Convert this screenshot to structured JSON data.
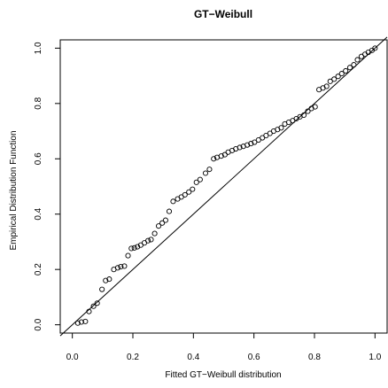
{
  "chart_data": {
    "type": "scatter",
    "title": "GT−Weibull",
    "xlabel": "Fitted GT−Weibull distribution",
    "ylabel": "Empirical Distribution Function",
    "xlim": [
      -0.04,
      1.04
    ],
    "ylim": [
      -0.03,
      1.03
    ],
    "xticks": [
      0.0,
      0.2,
      0.4,
      0.6,
      0.8,
      1.0
    ],
    "xtick_labels": [
      "0.0",
      "0.2",
      "0.4",
      "0.6",
      "0.8",
      "1.0"
    ],
    "yticks": [
      0.0,
      0.2,
      0.4,
      0.6,
      0.8,
      1.0
    ],
    "ytick_labels": [
      "0.0",
      "0.2",
      "0.4",
      "0.6",
      "0.8",
      "1.0"
    ],
    "grid": false,
    "reference_line": {
      "x": [
        -0.04,
        1.04
      ],
      "y": [
        -0.04,
        1.04
      ]
    },
    "series": [
      {
        "marker": "open-circle",
        "color": "#000000",
        "x": [
          0.018,
          0.03,
          0.043,
          0.055,
          0.07,
          0.082,
          0.098,
          0.11,
          0.122,
          0.137,
          0.15,
          0.16,
          0.172,
          0.184,
          0.195,
          0.205,
          0.215,
          0.226,
          0.238,
          0.25,
          0.26,
          0.272,
          0.285,
          0.297,
          0.308,
          0.32,
          0.333,
          0.348,
          0.36,
          0.372,
          0.385,
          0.397,
          0.41,
          0.422,
          0.44,
          0.453,
          0.467,
          0.478,
          0.492,
          0.504,
          0.515,
          0.528,
          0.54,
          0.553,
          0.565,
          0.578,
          0.59,
          0.602,
          0.615,
          0.628,
          0.64,
          0.653,
          0.665,
          0.678,
          0.69,
          0.702,
          0.715,
          0.728,
          0.74,
          0.752,
          0.765,
          0.778,
          0.79,
          0.802,
          0.815,
          0.828,
          0.84,
          0.852,
          0.865,
          0.878,
          0.89,
          0.903,
          0.917,
          0.93,
          0.942,
          0.955,
          0.967,
          0.978,
          0.99,
          1.0
        ],
        "y": [
          0.006,
          0.01,
          0.012,
          0.048,
          0.067,
          0.078,
          0.128,
          0.16,
          0.165,
          0.2,
          0.206,
          0.21,
          0.212,
          0.25,
          0.276,
          0.278,
          0.282,
          0.288,
          0.296,
          0.304,
          0.308,
          0.33,
          0.357,
          0.368,
          0.378,
          0.41,
          0.446,
          0.455,
          0.462,
          0.47,
          0.48,
          0.49,
          0.515,
          0.525,
          0.548,
          0.562,
          0.6,
          0.605,
          0.61,
          0.615,
          0.624,
          0.63,
          0.636,
          0.641,
          0.645,
          0.65,
          0.655,
          0.66,
          0.668,
          0.676,
          0.684,
          0.692,
          0.7,
          0.706,
          0.712,
          0.726,
          0.732,
          0.738,
          0.745,
          0.752,
          0.758,
          0.772,
          0.782,
          0.788,
          0.85,
          0.856,
          0.862,
          0.88,
          0.888,
          0.898,
          0.908,
          0.918,
          0.93,
          0.94,
          0.958,
          0.97,
          0.978,
          0.985,
          0.992,
          1.0
        ]
      }
    ]
  }
}
